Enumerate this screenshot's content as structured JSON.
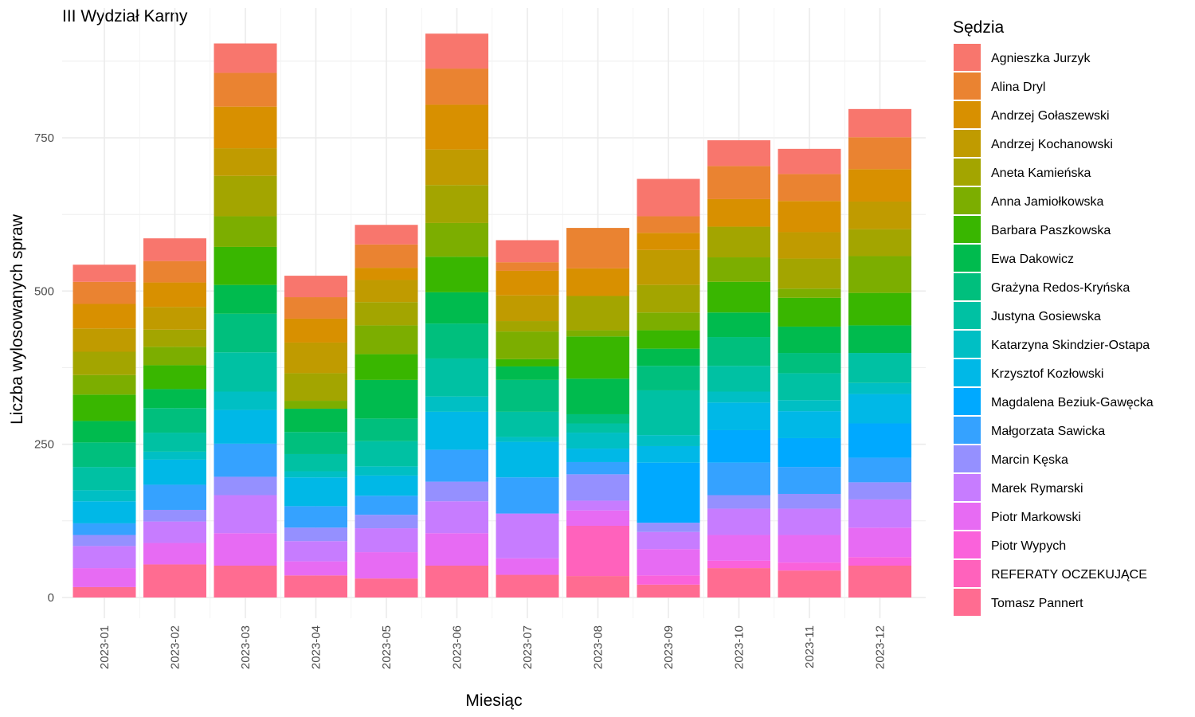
{
  "chart_data": {
    "type": "bar",
    "stacked": true,
    "title": "III Wydział Karny",
    "xlabel": "Miesiąc",
    "ylabel": "Liczba wylosowanych spraw",
    "ylim": [
      0,
      930
    ],
    "yticks": [
      0,
      250,
      500,
      750
    ],
    "grid": true,
    "legend_title": "Sędzia",
    "legend_position": "right",
    "categories": [
      "2023-01",
      "2023-02",
      "2023-03",
      "2023-04",
      "2023-05",
      "2023-06",
      "2023-07",
      "2023-08",
      "2023-09",
      "2023-10",
      "2023-11",
      "2023-12"
    ],
    "series": [
      {
        "name": "Agnieszka Jurzyk",
        "color": "#F8766D",
        "values": [
          28,
          37,
          48,
          35,
          32,
          57,
          36,
          0,
          61,
          42,
          41,
          46
        ]
      },
      {
        "name": "Alina Dryl",
        "color": "#EA8331",
        "values": [
          36,
          35,
          55,
          35,
          38,
          59,
          14,
          66,
          27,
          54,
          44,
          52
        ]
      },
      {
        "name": "Andrzej Gołaszewski",
        "color": "#D89000",
        "values": [
          40,
          40,
          68,
          39,
          20,
          73,
          40,
          45,
          28,
          45,
          51,
          53
        ]
      },
      {
        "name": "Andrzej Kochanowski",
        "color": "#C09B00",
        "values": [
          38,
          37,
          45,
          50,
          36,
          58,
          42,
          0,
          57,
          0,
          43,
          45
        ]
      },
      {
        "name": "Aneta Kamieńska",
        "color": "#A3A500",
        "values": [
          38,
          28,
          66,
          45,
          38,
          62,
          17,
          56,
          45,
          50,
          49,
          44
        ]
      },
      {
        "name": "Anna Jamiołkowska",
        "color": "#7CAE00",
        "values": [
          32,
          30,
          50,
          13,
          47,
          55,
          45,
          10,
          29,
          40,
          15,
          60
        ]
      },
      {
        "name": "Barbara Paszkowska",
        "color": "#39B600",
        "values": [
          43,
          39,
          62,
          0,
          42,
          58,
          12,
          69,
          30,
          50,
          47,
          53
        ]
      },
      {
        "name": "Ewa Dakowicz",
        "color": "#00BB4E",
        "values": [
          35,
          31,
          47,
          38,
          63,
          51,
          22,
          58,
          28,
          40,
          43,
          45
        ]
      },
      {
        "name": "Grażyna Redos-Kryńska",
        "color": "#00BF7D",
        "values": [
          40,
          40,
          63,
          36,
          37,
          57,
          52,
          15,
          40,
          47,
          33,
          0
        ]
      },
      {
        "name": "Justyna Gosiewska",
        "color": "#00C1A3",
        "values": [
          38,
          31,
          64,
          28,
          41,
          62,
          41,
          15,
          73,
          42,
          44,
          49
        ]
      },
      {
        "name": "Katarzyna Skindzier-Ostapa",
        "color": "#00BFC4",
        "values": [
          18,
          13,
          30,
          10,
          15,
          25,
          8,
          26,
          18,
          18,
          18,
          18
        ]
      },
      {
        "name": "Krzysztof Kozłowski",
        "color": "#00B8E7",
        "values": [
          36,
          41,
          55,
          47,
          33,
          62,
          58,
          22,
          27,
          45,
          44,
          48
        ]
      },
      {
        "name": "Magdalena Beziuk-Gawęcka",
        "color": "#00A9FF",
        "values": [
          0,
          0,
          0,
          0,
          0,
          0,
          0,
          0,
          98,
          53,
          47,
          56
        ]
      },
      {
        "name": "Małgorzata Sawicka",
        "color": "#35A2FF",
        "values": [
          19,
          41,
          54,
          35,
          31,
          52,
          59,
          20,
          0,
          53,
          44,
          40
        ]
      },
      {
        "name": "Marcin Kęska",
        "color": "#9590FF",
        "values": [
          18,
          19,
          30,
          22,
          22,
          32,
          0,
          43,
          15,
          22,
          24,
          28
        ]
      },
      {
        "name": "Marek Rymarski",
        "color": "#C77CFF",
        "values": [
          36,
          35,
          62,
          33,
          39,
          52,
          73,
          16,
          28,
          43,
          43,
          46
        ]
      },
      {
        "name": "Piotr Markowski",
        "color": "#E76BF3",
        "values": [
          31,
          35,
          53,
          23,
          43,
          53,
          27,
          25,
          43,
          42,
          45,
          48
        ]
      },
      {
        "name": "Piotr Wypych",
        "color": "#FA62DB",
        "values": [
          0,
          0,
          0,
          0,
          0,
          0,
          0,
          0,
          15,
          12,
          13,
          14
        ]
      },
      {
        "name": "REFERATY OCZEKUJĄCE",
        "color": "#FF62BC",
        "values": [
          0,
          0,
          0,
          0,
          0,
          0,
          0,
          82,
          0,
          0,
          0,
          0
        ]
      },
      {
        "name": "Tomasz Pannert",
        "color": "#FF6C91",
        "values": [
          17,
          54,
          52,
          36,
          31,
          52,
          37,
          35,
          21,
          48,
          44,
          52
        ]
      }
    ]
  }
}
